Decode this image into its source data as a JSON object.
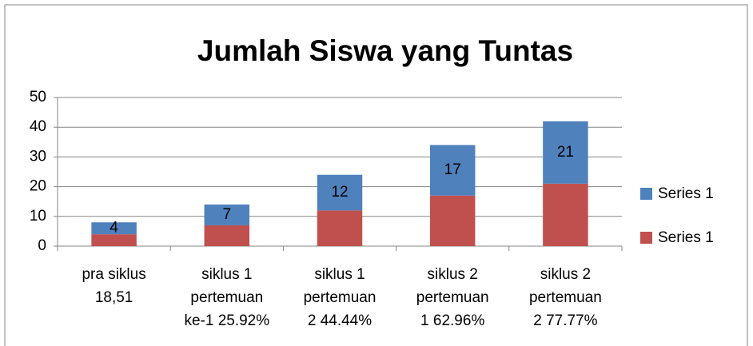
{
  "chart_data": {
    "type": "stacked_bar",
    "title": "Jumlah Siswa yang Tuntas",
    "categories": [
      [
        "pra siklus",
        "18,51"
      ],
      [
        "siklus 1",
        "pertemuan",
        "ke-1 25.92%"
      ],
      [
        "siklus 1",
        "pertemuan",
        "2 44.44%"
      ],
      [
        "siklus 2",
        "pertemuan",
        "1 62.96%"
      ],
      [
        "siklus 2",
        "pertemuan",
        "2 77.77%"
      ]
    ],
    "series": [
      {
        "name": "Series 1",
        "color": "#c0504d",
        "values": [
          4,
          7,
          12,
          17,
          21
        ],
        "data_labels": false
      },
      {
        "name": "Series 1",
        "color": "#4f81bd",
        "values": [
          4,
          7,
          12,
          17,
          21
        ],
        "data_labels": true
      }
    ],
    "ylim": [
      0,
      50
    ],
    "yticks": [
      0,
      10,
      20,
      30,
      40,
      50
    ],
    "grid": true,
    "legend": "right"
  }
}
